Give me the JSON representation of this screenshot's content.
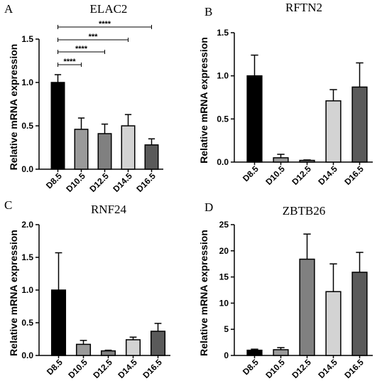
{
  "chart_data": [
    {
      "panel": "A",
      "type": "bar",
      "title": "ELAC2",
      "ylabel": "Relative mRNA expression",
      "categories": [
        "D8.5",
        "D10.5",
        "D12.5",
        "D14.5",
        "D16.5"
      ],
      "values": [
        1.0,
        0.46,
        0.41,
        0.5,
        0.28
      ],
      "errors": [
        0.09,
        0.13,
        0.11,
        0.13,
        0.07
      ],
      "colors": [
        "#000000",
        "#9a9a9a",
        "#808080",
        "#d3d3d3",
        "#5a5a5a"
      ],
      "ylim": [
        0,
        1.5
      ],
      "yticks": [
        "0.0",
        "0.5",
        "1.0",
        "1.5"
      ],
      "significance": [
        {
          "from": "D8.5",
          "to": "D10.5",
          "label": "****"
        },
        {
          "from": "D8.5",
          "to": "D12.5",
          "label": "****"
        },
        {
          "from": "D8.5",
          "to": "D14.5",
          "label": "***"
        },
        {
          "from": "D8.5",
          "to": "D16.5",
          "label": "****"
        }
      ]
    },
    {
      "panel": "B",
      "type": "bar",
      "title": "RFTN2",
      "ylabel": "Relative mRNA expression",
      "categories": [
        "D8.5",
        "D10.5",
        "D12.5",
        "D14.5",
        "D16.5"
      ],
      "values": [
        1.0,
        0.05,
        0.02,
        0.71,
        0.87
      ],
      "errors": [
        0.24,
        0.04,
        0.005,
        0.13,
        0.28
      ],
      "colors": [
        "#000000",
        "#9a9a9a",
        "#808080",
        "#d3d3d3",
        "#5a5a5a"
      ],
      "ylim": [
        0,
        1.5
      ],
      "yticks": [
        "0.0",
        "0.5",
        "1.0",
        "1.5"
      ],
      "significance": []
    },
    {
      "panel": "C",
      "type": "bar",
      "title": "RNF24",
      "ylabel": "Relative mRNA expression",
      "categories": [
        "D8.5",
        "D10.5",
        "D12.5",
        "D14.5",
        "D16.5"
      ],
      "values": [
        1.0,
        0.17,
        0.07,
        0.24,
        0.37
      ],
      "errors": [
        0.57,
        0.06,
        0.01,
        0.04,
        0.12
      ],
      "colors": [
        "#000000",
        "#9a9a9a",
        "#808080",
        "#d3d3d3",
        "#5a5a5a"
      ],
      "ylim": [
        0,
        2.0
      ],
      "yticks": [
        "0.0",
        "0.5",
        "1.0",
        "1.5",
        "2.0"
      ],
      "significance": []
    },
    {
      "panel": "D",
      "type": "bar",
      "title": "ZBTB26",
      "ylabel": "Relative mRNA expression",
      "categories": [
        "D8.5",
        "D10.5",
        "D12.5",
        "D14.5",
        "D16.5"
      ],
      "values": [
        1.0,
        1.1,
        18.4,
        12.2,
        15.9
      ],
      "errors": [
        0.2,
        0.4,
        4.8,
        5.3,
        3.8
      ],
      "colors": [
        "#000000",
        "#9a9a9a",
        "#808080",
        "#d3d3d3",
        "#5a5a5a"
      ],
      "ylim": [
        0,
        25
      ],
      "yticks": [
        "0",
        "5",
        "10",
        "15",
        "20",
        "25"
      ],
      "significance": []
    }
  ]
}
